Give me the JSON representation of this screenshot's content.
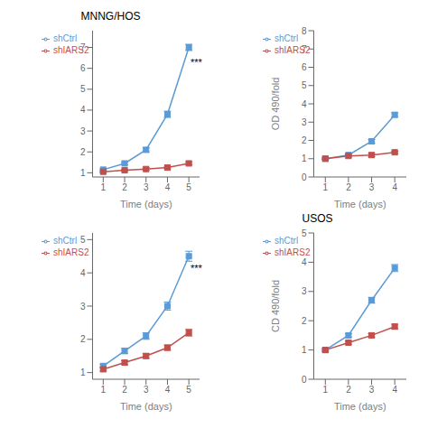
{
  "chart_data": [
    {
      "type": "line",
      "title": "MNNG/HOS",
      "x_label": "Time (days)",
      "x": [
        1,
        2,
        3,
        4,
        5
      ],
      "xlim": [
        0.5,
        5.5
      ],
      "xticks": [
        1,
        2,
        3,
        4,
        5
      ],
      "ylim": [
        0.8,
        7.8
      ],
      "yticks": [
        1,
        2,
        3,
        4,
        5,
        6,
        7
      ],
      "series": [
        {
          "name": "shCtrl",
          "color": "#5B9BD5",
          "marker": "square",
          "values": [
            1.15,
            1.45,
            2.1,
            3.8,
            7.0
          ],
          "errors": [
            0.05,
            0.06,
            0.1,
            0.15,
            0.15
          ]
        },
        {
          "name": "shIARS2",
          "color": "#C0504D",
          "marker": "square",
          "values": [
            1.05,
            1.12,
            1.18,
            1.25,
            1.45
          ],
          "errors": [
            0.04,
            0.05,
            0.06,
            0.06,
            0.07
          ]
        }
      ],
      "annotations": [
        {
          "text": "***",
          "x": 5.08,
          "y": 6.3
        }
      ],
      "legend": "upper left",
      "grid": false
    },
    {
      "type": "line",
      "x_label": "Time (days)",
      "y_label": "OD 490/fold",
      "x": [
        1,
        2,
        3,
        4
      ],
      "xlim": [
        0.5,
        4.5
      ],
      "xticks": [
        1,
        2,
        3,
        4
      ],
      "ylim": [
        0,
        8
      ],
      "yticks": [
        0,
        1,
        2,
        3,
        4,
        5,
        6,
        7,
        8
      ],
      "series": [
        {
          "name": "shCtrl",
          "color": "#5B9BD5",
          "marker": "square",
          "values": [
            1.0,
            1.2,
            1.95,
            3.4
          ],
          "errors": [
            0.04,
            0.06,
            0.1,
            0.12
          ]
        },
        {
          "name": "shIARS2",
          "color": "#C0504D",
          "marker": "square",
          "values": [
            1.0,
            1.15,
            1.2,
            1.35
          ],
          "errors": [
            0.04,
            0.05,
            0.08,
            0.06
          ]
        }
      ],
      "legend": "upper left",
      "grid": false
    },
    {
      "type": "line",
      "x_label": "Time (days)",
      "x": [
        1,
        2,
        3,
        4,
        5
      ],
      "xlim": [
        0.5,
        5.5
      ],
      "xticks": [
        1,
        2,
        3,
        4,
        5
      ],
      "ylim": [
        0.8,
        5.2
      ],
      "yticks": [
        1,
        2,
        3,
        4,
        5
      ],
      "series": [
        {
          "name": "shCtrl",
          "color": "#5B9BD5",
          "marker": "square",
          "values": [
            1.2,
            1.65,
            2.1,
            3.0,
            4.5
          ],
          "errors": [
            0.05,
            0.08,
            0.1,
            0.12,
            0.15
          ]
        },
        {
          "name": "shIARS2",
          "color": "#C0504D",
          "marker": "square",
          "values": [
            1.1,
            1.3,
            1.5,
            1.75,
            2.2
          ],
          "errors": [
            0.05,
            0.06,
            0.07,
            0.08,
            0.1
          ]
        }
      ],
      "annotations": [
        {
          "text": "***",
          "x": 5.08,
          "y": 4.15
        }
      ],
      "legend": "upper left",
      "grid": false
    },
    {
      "type": "line",
      "title": "USOS",
      "x_label": "Time (days)",
      "y_label": "CD 490/fold",
      "x": [
        1,
        2,
        3,
        4
      ],
      "xlim": [
        0.5,
        4.5
      ],
      "xticks": [
        1,
        2,
        3,
        4
      ],
      "ylim": [
        0,
        5
      ],
      "yticks": [
        0,
        1,
        2,
        3,
        4,
        5
      ],
      "series": [
        {
          "name": "shCtrl",
          "color": "#5B9BD5",
          "marker": "square",
          "values": [
            1.0,
            1.5,
            2.7,
            3.8
          ],
          "errors": [
            0.04,
            0.06,
            0.1,
            0.12
          ]
        },
        {
          "name": "shIARS2",
          "color": "#C0504D",
          "marker": "square",
          "values": [
            1.0,
            1.25,
            1.5,
            1.8
          ],
          "errors": [
            0.04,
            0.05,
            0.06,
            0.08
          ]
        }
      ],
      "legend": "upper left",
      "grid": false
    }
  ]
}
